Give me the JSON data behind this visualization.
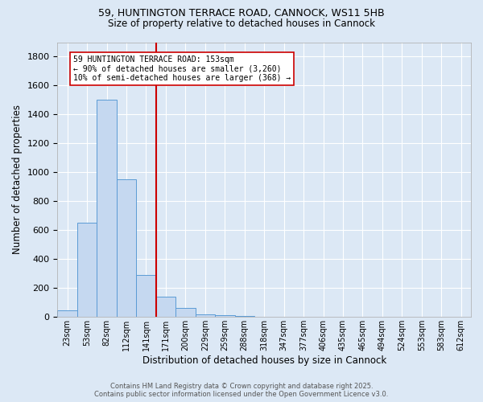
{
  "title1": "59, HUNTINGTON TERRACE ROAD, CANNOCK, WS11 5HB",
  "title2": "Size of property relative to detached houses in Cannock",
  "xlabel": "Distribution of detached houses by size in Cannock",
  "ylabel": "Number of detached properties",
  "bar_labels": [
    "23sqm",
    "53sqm",
    "82sqm",
    "112sqm",
    "141sqm",
    "171sqm",
    "200sqm",
    "229sqm",
    "259sqm",
    "288sqm",
    "318sqm",
    "347sqm",
    "377sqm",
    "406sqm",
    "435sqm",
    "465sqm",
    "494sqm",
    "524sqm",
    "553sqm",
    "583sqm",
    "612sqm"
  ],
  "bar_values": [
    45,
    650,
    1500,
    950,
    290,
    140,
    65,
    20,
    10,
    5,
    3,
    2,
    1,
    0,
    0,
    0,
    0,
    0,
    0,
    0,
    0
  ],
  "bar_color": "#c5d8f0",
  "bar_edge_color": "#5b9bd5",
  "vline_color": "#cc0000",
  "annotation_text": "59 HUNTINGTON TERRACE ROAD: 153sqm\n← 90% of detached houses are smaller (3,260)\n10% of semi-detached houses are larger (368) →",
  "annotation_box_color": "#ffffff",
  "annotation_box_edge": "#cc0000",
  "ylim": [
    0,
    1900
  ],
  "yticks": [
    0,
    200,
    400,
    600,
    800,
    1000,
    1200,
    1400,
    1600,
    1800
  ],
  "background_color": "#dce8f5",
  "grid_color": "#ffffff",
  "footer1": "Contains HM Land Registry data © Crown copyright and database right 2025.",
  "footer2": "Contains public sector information licensed under the Open Government Licence v3.0."
}
